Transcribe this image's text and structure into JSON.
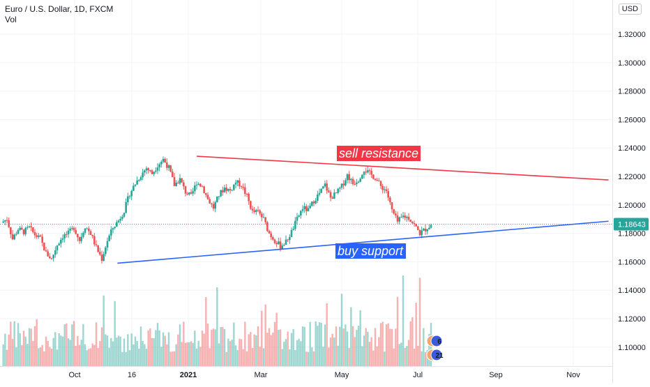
{
  "header": {
    "symbol_line": "Euro / U.S. Dollar, 1D, FXCM",
    "indicator": "Vol"
  },
  "currency_badge": "USD",
  "price_axis": {
    "labels": [
      "1.32000",
      "1.30000",
      "1.28000",
      "1.26000",
      "1.24000",
      "1.22000",
      "1.20000",
      "1.18000",
      "1.16000",
      "1.14000",
      "1.12000",
      "1.10000"
    ],
    "values": [
      1.32,
      1.3,
      1.28,
      1.26,
      1.24,
      1.22,
      1.2,
      1.18,
      1.16,
      1.14,
      1.12,
      1.1
    ]
  },
  "current_price": {
    "label": "1.18643",
    "value": 1.18643,
    "color": "#26a69a"
  },
  "time_axis": {
    "labels": [
      "Oct",
      "16",
      "2021",
      "Mar",
      "May",
      "Jul",
      "Sep",
      "Nov"
    ],
    "bold": [
      false,
      false,
      true,
      false,
      false,
      false,
      false,
      false
    ]
  },
  "annotations": {
    "resistance": {
      "label": "sell resistance",
      "color": "#f23645"
    },
    "support": {
      "label": "buy support",
      "color": "#2962ff"
    }
  },
  "event_markers": [
    "6",
    "21"
  ],
  "colors": {
    "up": "#26a69a",
    "down": "#ef5350",
    "grid": "#f0f3fa",
    "text": "#131722"
  },
  "chart_data": {
    "type": "candlestick",
    "title": "Euro / U.S. Dollar, 1D, FXCM",
    "ylim": [
      1.085,
      1.335
    ],
    "close_series": [
      1.1875,
      1.19,
      1.176,
      1.183,
      1.181,
      1.184,
      1.179,
      1.176,
      1.166,
      1.162,
      1.172,
      1.178,
      1.18,
      1.184,
      1.175,
      1.185,
      1.18,
      1.17,
      1.162,
      1.175,
      1.184,
      1.189,
      1.196,
      1.208,
      1.215,
      1.221,
      1.226,
      1.222,
      1.228,
      1.232,
      1.226,
      1.214,
      1.218,
      1.209,
      1.206,
      1.216,
      1.213,
      1.204,
      1.198,
      1.207,
      1.212,
      1.21,
      1.216,
      1.214,
      1.206,
      1.195,
      1.195,
      1.19,
      1.18,
      1.175,
      1.171,
      1.174,
      1.181,
      1.19,
      1.198,
      1.196,
      1.203,
      1.208,
      1.214,
      1.205,
      1.208,
      1.213,
      1.221,
      1.215,
      1.218,
      1.225,
      1.222,
      1.219,
      1.213,
      1.21,
      1.196,
      1.188,
      1.192,
      1.191,
      1.186,
      1.18,
      1.183,
      1.186
    ],
    "resistance_line": {
      "from": {
        "date": "2021-01-06",
        "price": 1.2342
      },
      "to": {
        "date": "2021-11-29",
        "price": 1.2175
      }
    },
    "support_line": {
      "from": {
        "date": "2020-11-04",
        "price": 1.159
      },
      "to": {
        "date": "2021-11-29",
        "price": 1.1885
      }
    }
  }
}
